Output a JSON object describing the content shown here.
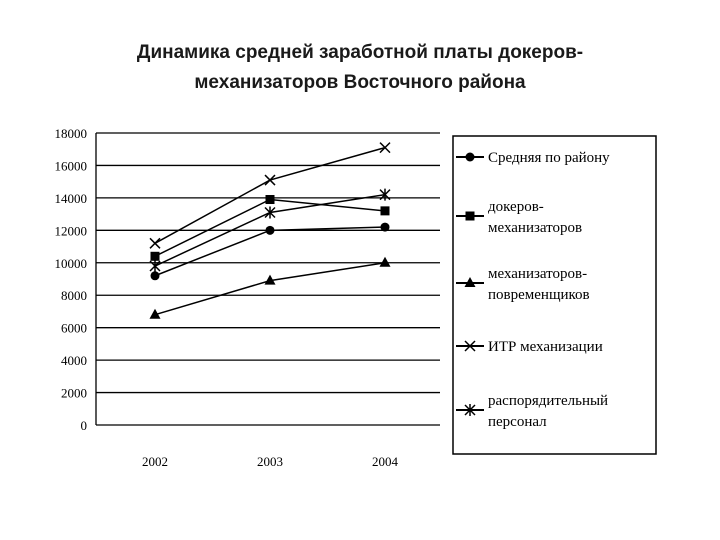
{
  "title_line1": "Динамика средней заработной платы докеров-",
  "title_line2": "механизаторов Восточного района",
  "chart_data": {
    "type": "line",
    "title": "Динамика средней заработной платы докеров-механизаторов Восточного района",
    "xlabel": "",
    "ylabel": "",
    "categories": [
      "2002",
      "2003",
      "2004"
    ],
    "ylim": [
      0,
      18000
    ],
    "yticks": [
      0,
      2000,
      4000,
      6000,
      8000,
      10000,
      12000,
      14000,
      16000,
      18000
    ],
    "grid": true,
    "legend_position": "right",
    "series": [
      {
        "name": "Средняя по району",
        "marker": "circle",
        "values": [
          9200,
          12000,
          12200
        ]
      },
      {
        "name": "докеров-механизаторов",
        "marker": "square",
        "values": [
          10400,
          13900,
          13200
        ]
      },
      {
        "name": "механизаторов-повременщиков",
        "marker": "triangle",
        "values": [
          6800,
          8900,
          10000
        ]
      },
      {
        "name": "ИТР механизации",
        "marker": "x",
        "values": [
          11200,
          15100,
          17100
        ]
      },
      {
        "name": "распорядительный персонал",
        "marker": "star",
        "values": [
          9800,
          13100,
          14200
        ]
      }
    ],
    "legend_lines": [
      [
        "Средняя по району"
      ],
      [
        "докеров-",
        "механизаторов"
      ],
      [
        "механизаторов-",
        "повременщиков"
      ],
      [
        "ИТР механизации"
      ],
      [
        "распорядительный",
        "персонал"
      ]
    ]
  }
}
